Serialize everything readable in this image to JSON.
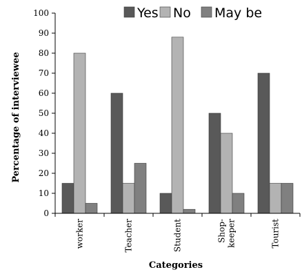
{
  "chart_data": {
    "type": "bar",
    "title": "",
    "xlabel": "Categories",
    "ylabel": "Percentage of interviewee",
    "ylim": [
      0,
      100
    ],
    "yticks": [
      0,
      10,
      20,
      30,
      40,
      50,
      60,
      70,
      80,
      90,
      100
    ],
    "categories": [
      "worker",
      "Teacher",
      "Student",
      "Shop-\nkeeper",
      "Tourist"
    ],
    "series": [
      {
        "name": "Yes",
        "color": "#595959",
        "values": [
          15,
          60,
          10,
          50,
          70
        ]
      },
      {
        "name": "No",
        "color": "#b3b3b3",
        "values": [
          80,
          15,
          88,
          40,
          15
        ]
      },
      {
        "name": "May be",
        "color": "#808080",
        "values": [
          5,
          25,
          2,
          10,
          15
        ]
      }
    ],
    "legend_position": "top",
    "grid": false
  }
}
